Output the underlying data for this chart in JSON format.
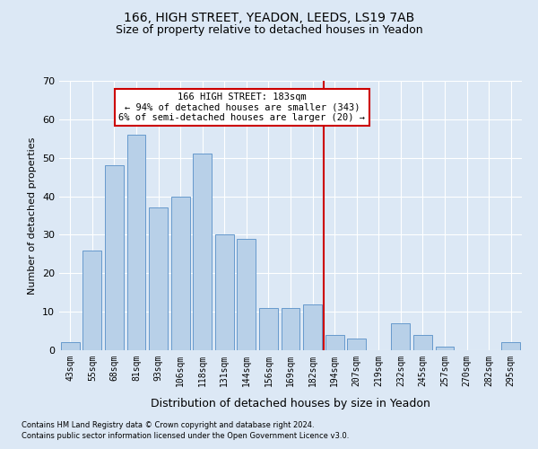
{
  "title1": "166, HIGH STREET, YEADON, LEEDS, LS19 7AB",
  "title2": "Size of property relative to detached houses in Yeadon",
  "xlabel": "Distribution of detached houses by size in Yeadon",
  "ylabel": "Number of detached properties",
  "footer1": "Contains HM Land Registry data © Crown copyright and database right 2024.",
  "footer2": "Contains public sector information licensed under the Open Government Licence v3.0.",
  "categories": [
    "43sqm",
    "55sqm",
    "68sqm",
    "81sqm",
    "93sqm",
    "106sqm",
    "118sqm",
    "131sqm",
    "144sqm",
    "156sqm",
    "169sqm",
    "182sqm",
    "194sqm",
    "207sqm",
    "219sqm",
    "232sqm",
    "245sqm",
    "257sqm",
    "270sqm",
    "282sqm",
    "295sqm"
  ],
  "values": [
    2,
    26,
    48,
    56,
    37,
    40,
    51,
    30,
    29,
    11,
    11,
    12,
    4,
    3,
    0,
    7,
    4,
    1,
    0,
    0,
    2
  ],
  "bar_color": "#b8d0e8",
  "bar_edge_color": "#6699cc",
  "vline_label": "166 HIGH STREET: 183sqm",
  "annotation_line1": "← 94% of detached houses are smaller (343)",
  "annotation_line2": "6% of semi-detached houses are larger (20) →",
  "annotation_box_color": "#ffffff",
  "annotation_box_edge": "#cc0000",
  "vline_color": "#cc0000",
  "ylim": [
    0,
    70
  ],
  "yticks": [
    0,
    10,
    20,
    30,
    40,
    50,
    60,
    70
  ],
  "bg_color": "#dce8f5",
  "plot_bg_color": "#dce8f5",
  "grid_color": "#ffffff",
  "title_fontsize": 10,
  "subtitle_fontsize": 9,
  "annotation_fontsize": 7.5,
  "ylabel_fontsize": 8,
  "xlabel_fontsize": 9,
  "footer_fontsize": 6,
  "tick_fontsize": 7
}
